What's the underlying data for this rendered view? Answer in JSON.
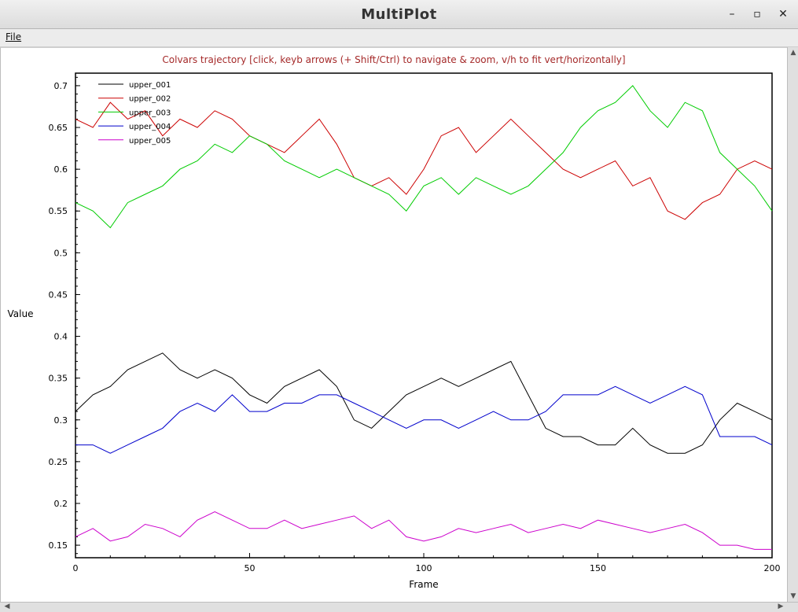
{
  "window": {
    "title": "MultiPlot",
    "controls": {
      "minimize": "–",
      "maximize": "▫",
      "close": "✕"
    }
  },
  "menu": {
    "file": "File"
  },
  "chart_data": {
    "type": "line",
    "title": "Colvars trajectory   [click, keyb arrows (+ Shift/Ctrl) to navigate & zoom, v/h to fit vert/horizontally]",
    "xlabel": "Frame",
    "ylabel": "Value",
    "xlim": [
      0,
      200
    ],
    "ylim": [
      0.135,
      0.715
    ],
    "x_ticks": [
      0,
      50,
      100,
      150,
      200
    ],
    "y_ticks": [
      0.15,
      0.2,
      0.25,
      0.3,
      0.35,
      0.4,
      0.45,
      0.5,
      0.55,
      0.6,
      0.65,
      0.7
    ],
    "legend_position": "top-left",
    "grid": false,
    "series": [
      {
        "name": "upper_001",
        "color": "#000000",
        "x": [
          0,
          5,
          10,
          15,
          20,
          25,
          30,
          35,
          40,
          45,
          50,
          55,
          60,
          65,
          70,
          75,
          80,
          85,
          90,
          95,
          100,
          105,
          110,
          115,
          120,
          125,
          130,
          135,
          140,
          145,
          150,
          155,
          160,
          165,
          170,
          175,
          180,
          185,
          190,
          195,
          200
        ],
        "y": [
          0.31,
          0.33,
          0.34,
          0.36,
          0.37,
          0.38,
          0.36,
          0.35,
          0.36,
          0.35,
          0.33,
          0.32,
          0.34,
          0.35,
          0.36,
          0.34,
          0.3,
          0.29,
          0.31,
          0.33,
          0.34,
          0.35,
          0.34,
          0.35,
          0.36,
          0.37,
          0.33,
          0.29,
          0.28,
          0.28,
          0.27,
          0.27,
          0.29,
          0.27,
          0.26,
          0.26,
          0.27,
          0.3,
          0.32,
          0.31,
          0.3
        ]
      },
      {
        "name": "upper_002",
        "color": "#cc0000",
        "x": [
          0,
          5,
          10,
          15,
          20,
          25,
          30,
          35,
          40,
          45,
          50,
          55,
          60,
          65,
          70,
          75,
          80,
          85,
          90,
          95,
          100,
          105,
          110,
          115,
          120,
          125,
          130,
          135,
          140,
          145,
          150,
          155,
          160,
          165,
          170,
          175,
          180,
          185,
          190,
          195,
          200
        ],
        "y": [
          0.66,
          0.65,
          0.68,
          0.66,
          0.67,
          0.64,
          0.66,
          0.65,
          0.67,
          0.66,
          0.64,
          0.63,
          0.62,
          0.64,
          0.66,
          0.63,
          0.59,
          0.58,
          0.59,
          0.57,
          0.6,
          0.64,
          0.65,
          0.62,
          0.64,
          0.66,
          0.64,
          0.62,
          0.6,
          0.59,
          0.6,
          0.61,
          0.58,
          0.59,
          0.55,
          0.54,
          0.56,
          0.57,
          0.6,
          0.61,
          0.6
        ]
      },
      {
        "name": "upper_003",
        "color": "#00cc00",
        "x": [
          0,
          5,
          10,
          15,
          20,
          25,
          30,
          35,
          40,
          45,
          50,
          55,
          60,
          65,
          70,
          75,
          80,
          85,
          90,
          95,
          100,
          105,
          110,
          115,
          120,
          125,
          130,
          135,
          140,
          145,
          150,
          155,
          160,
          165,
          170,
          175,
          180,
          185,
          190,
          195,
          200
        ],
        "y": [
          0.56,
          0.55,
          0.53,
          0.56,
          0.57,
          0.58,
          0.6,
          0.61,
          0.63,
          0.62,
          0.64,
          0.63,
          0.61,
          0.6,
          0.59,
          0.6,
          0.59,
          0.58,
          0.57,
          0.55,
          0.58,
          0.59,
          0.57,
          0.59,
          0.58,
          0.57,
          0.58,
          0.6,
          0.62,
          0.65,
          0.67,
          0.68,
          0.7,
          0.67,
          0.65,
          0.68,
          0.67,
          0.62,
          0.6,
          0.58,
          0.55
        ]
      },
      {
        "name": "upper_004",
        "color": "#0000cc",
        "x": [
          0,
          5,
          10,
          15,
          20,
          25,
          30,
          35,
          40,
          45,
          50,
          55,
          60,
          65,
          70,
          75,
          80,
          85,
          90,
          95,
          100,
          105,
          110,
          115,
          120,
          125,
          130,
          135,
          140,
          145,
          150,
          155,
          160,
          165,
          170,
          175,
          180,
          185,
          190,
          195,
          200
        ],
        "y": [
          0.27,
          0.27,
          0.26,
          0.27,
          0.28,
          0.29,
          0.31,
          0.32,
          0.31,
          0.33,
          0.31,
          0.31,
          0.32,
          0.32,
          0.33,
          0.33,
          0.32,
          0.31,
          0.3,
          0.29,
          0.3,
          0.3,
          0.29,
          0.3,
          0.31,
          0.3,
          0.3,
          0.31,
          0.33,
          0.33,
          0.33,
          0.34,
          0.33,
          0.32,
          0.33,
          0.34,
          0.33,
          0.28,
          0.28,
          0.28,
          0.27
        ]
      },
      {
        "name": "upper_005",
        "color": "#cc00cc",
        "x": [
          0,
          5,
          10,
          15,
          20,
          25,
          30,
          35,
          40,
          45,
          50,
          55,
          60,
          65,
          70,
          75,
          80,
          85,
          90,
          95,
          100,
          105,
          110,
          115,
          120,
          125,
          130,
          135,
          140,
          145,
          150,
          155,
          160,
          165,
          170,
          175,
          180,
          185,
          190,
          195,
          200
        ],
        "y": [
          0.16,
          0.17,
          0.155,
          0.16,
          0.175,
          0.17,
          0.16,
          0.18,
          0.19,
          0.18,
          0.17,
          0.17,
          0.18,
          0.17,
          0.175,
          0.18,
          0.185,
          0.17,
          0.18,
          0.16,
          0.155,
          0.16,
          0.17,
          0.165,
          0.17,
          0.175,
          0.165,
          0.17,
          0.175,
          0.17,
          0.18,
          0.175,
          0.17,
          0.165,
          0.17,
          0.175,
          0.165,
          0.15,
          0.15,
          0.145,
          0.145
        ]
      }
    ]
  }
}
